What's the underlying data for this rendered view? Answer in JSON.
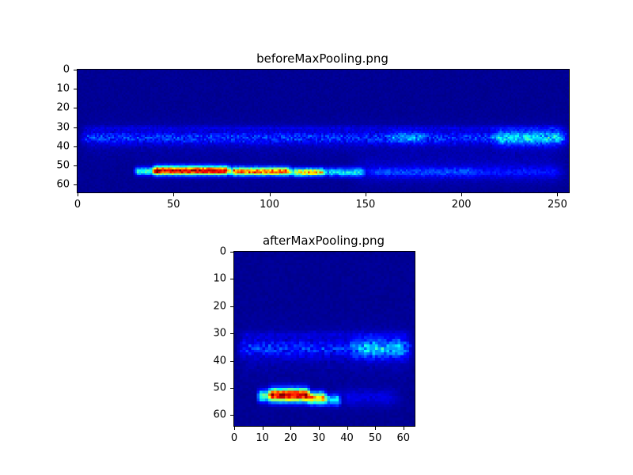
{
  "page": {
    "background": "#ffffff",
    "figure_type": "matplotlib-style heatmap figure with two subplots"
  },
  "colors": {
    "background_navy": "#000080",
    "hotspot_red": "#d40000",
    "hotspot_yellow": "#ffff00",
    "axis_black": "#000000"
  },
  "chart_data": [
    {
      "type": "heatmap",
      "title": "beforeMaxPooling.png",
      "xlabel": "",
      "ylabel": "",
      "xlim": [
        0,
        256
      ],
      "ylim": [
        64,
        0
      ],
      "xticks": [
        0,
        50,
        100,
        150,
        200,
        250
      ],
      "yticks": [
        0,
        10,
        20,
        30,
        40,
        50,
        60
      ],
      "colormap": "jet",
      "grid": [
        256,
        64
      ],
      "background_level": 0.02,
      "salient_regions": [
        "mottled brighter blue horizontal band around rows 32-39 across full width, brightest near columns 214-255",
        "faint lighter line near row 30",
        "intense red/yellow activation streak near rows 51-54, strongest columns 35-125, fading to cyan by column 150 and faint blue tail to column 255"
      ],
      "features": [
        {
          "x0": 0,
          "x1": 256,
          "y": 30,
          "ry": 0.8,
          "v": 0.07,
          "n": 0.6,
          "fade": 6
        },
        {
          "x0": 0,
          "x1": 256,
          "y": 36,
          "ry": 6,
          "v": 0.05,
          "n": 0.8,
          "fade": 8
        },
        {
          "x0": 0,
          "x1": 256,
          "y": 35,
          "ry": 2.2,
          "v": 0.2,
          "n": 0.8,
          "fade": 4
        },
        {
          "x0": 160,
          "x1": 182,
          "y": 35,
          "ry": 2.2,
          "v": 0.14,
          "n": 0.6,
          "fade": 3
        },
        {
          "x0": 214,
          "x1": 256,
          "y": 35,
          "ry": 3.0,
          "v": 0.26,
          "n": 0.6,
          "fade": 6
        },
        {
          "x0": 140,
          "x1": 256,
          "y": 52,
          "ry": 5,
          "v": 0.07,
          "n": 0.6,
          "fade": 10
        },
        {
          "x0": 28,
          "x1": 42,
          "y": 52.5,
          "ry": 1.4,
          "v": 0.5,
          "n": 0.3,
          "fade": 3
        },
        {
          "x0": 38,
          "x1": 80,
          "y": 52.2,
          "ry": 1.6,
          "v": 1.05,
          "n": 0.22,
          "fade": 3
        },
        {
          "x0": 78,
          "x1": 112,
          "y": 52.6,
          "ry": 1.5,
          "v": 0.92,
          "n": 0.3,
          "fade": 3
        },
        {
          "x0": 110,
          "x1": 130,
          "y": 53,
          "ry": 1.4,
          "v": 0.8,
          "n": 0.35,
          "fade": 3
        },
        {
          "x0": 128,
          "x1": 150,
          "y": 53,
          "ry": 1.6,
          "v": 0.42,
          "n": 0.4,
          "fade": 3
        },
        {
          "x0": 148,
          "x1": 210,
          "y": 53,
          "ry": 1.8,
          "v": 0.16,
          "n": 0.5,
          "fade": 8
        },
        {
          "x0": 200,
          "x1": 256,
          "y": 53,
          "ry": 2.0,
          "v": 0.1,
          "n": 0.5,
          "fade": 8
        }
      ]
    },
    {
      "type": "heatmap",
      "title": "afterMaxPooling.png",
      "xlabel": "",
      "ylabel": "",
      "xlim": [
        0,
        64
      ],
      "ylim": [
        64,
        0
      ],
      "xticks": [
        0,
        10,
        20,
        30,
        40,
        50,
        60
      ],
      "yticks": [
        0,
        10,
        20,
        30,
        40,
        50,
        60
      ],
      "colormap": "jet",
      "grid": [
        64,
        64
      ],
      "background_level": 0.02,
      "salient_regions": [
        "mottled brighter blue horizontal band around rows 32-39, brighter near columns 40-62",
        "intense red/yellow activation streak near rows 51-55, columns 8-33, fading to cyan by column 38 and faint blue to column 60"
      ],
      "features": [
        {
          "x0": 0,
          "x1": 64,
          "y": 30,
          "ry": 0.8,
          "v": 0.06,
          "n": 0.6,
          "fade": 4
        },
        {
          "x0": 0,
          "x1": 64,
          "y": 36,
          "ry": 6,
          "v": 0.05,
          "n": 0.8,
          "fade": 4
        },
        {
          "x0": 0,
          "x1": 64,
          "y": 35,
          "ry": 2.2,
          "v": 0.18,
          "n": 0.8,
          "fade": 3
        },
        {
          "x0": 40,
          "x1": 62,
          "y": 35,
          "ry": 2.8,
          "v": 0.22,
          "n": 0.6,
          "fade": 4
        },
        {
          "x0": 7,
          "x1": 13,
          "y": 52.5,
          "ry": 1.5,
          "v": 0.55,
          "n": 0.3,
          "fade": 2
        },
        {
          "x0": 11,
          "x1": 27,
          "y": 52.2,
          "ry": 1.7,
          "v": 1.05,
          "n": 0.22,
          "fade": 2
        },
        {
          "x0": 25,
          "x1": 33,
          "y": 53.3,
          "ry": 1.5,
          "v": 0.85,
          "n": 0.3,
          "fade": 2
        },
        {
          "x0": 31,
          "x1": 38,
          "y": 54,
          "ry": 1.4,
          "v": 0.4,
          "n": 0.35,
          "fade": 2
        },
        {
          "x0": 34,
          "x1": 60,
          "y": 53,
          "ry": 2.2,
          "v": 0.1,
          "n": 0.5,
          "fade": 6
        }
      ]
    }
  ]
}
